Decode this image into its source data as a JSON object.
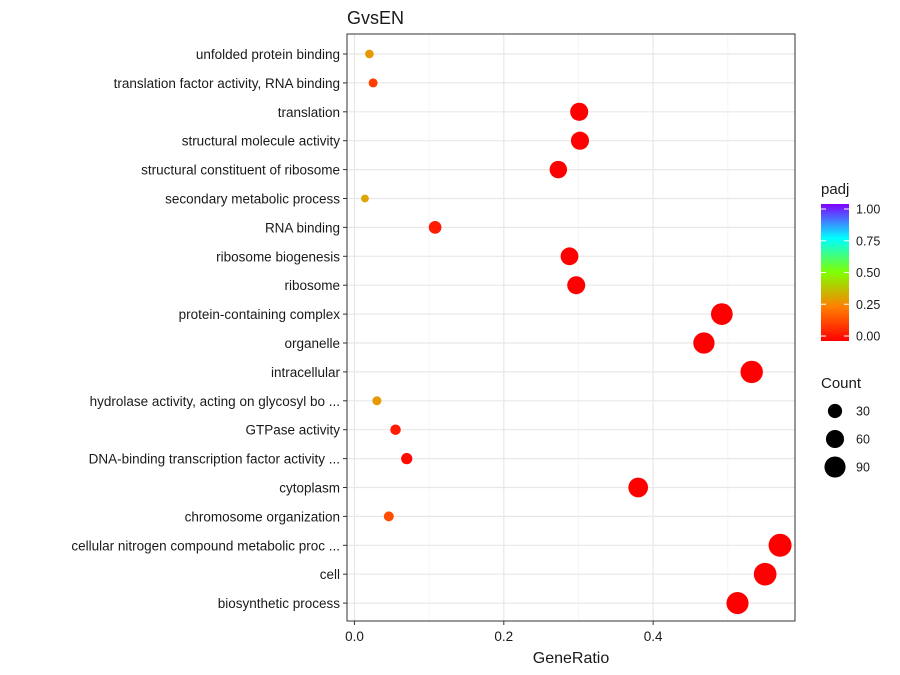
{
  "chart_data": {
    "type": "scatter",
    "title": "GvsEN",
    "xlabel": "GeneRatio",
    "ylabel": "",
    "xlim": [
      -0.01,
      0.59
    ],
    "x_ticks": [
      "0.0",
      "0.2",
      "0.4"
    ],
    "x_tick_values": [
      0.0,
      0.2,
      0.4
    ],
    "grid": true,
    "categories": [
      "unfolded protein binding",
      "translation factor activity, RNA binding",
      "translation",
      "structural molecule activity",
      "structural constituent of ribosome",
      "secondary metabolic process",
      "RNA binding",
      "ribosome biogenesis",
      "ribosome",
      "protein-containing complex",
      "organelle",
      "intracellular",
      "hydrolase activity, acting on glycosyl bo ...",
      "GTPase activity",
      "DNA-binding transcription factor activity ...",
      "cytoplasm",
      "chromosome organization",
      "cellular nitrogen compound metabolic proc ...",
      "cell",
      "biosynthetic process"
    ],
    "points": [
      {
        "term": "unfolded protein binding",
        "x": 0.02,
        "count": 5,
        "padj": 0.3
      },
      {
        "term": "translation factor activity, RNA binding",
        "x": 0.025,
        "count": 6,
        "padj": 0.12
      },
      {
        "term": "translation",
        "x": 0.301,
        "count": 60,
        "padj": 0.0
      },
      {
        "term": "structural molecule activity",
        "x": 0.302,
        "count": 60,
        "padj": 0.0
      },
      {
        "term": "structural constituent of ribosome",
        "x": 0.273,
        "count": 54,
        "padj": 0.0
      },
      {
        "term": "secondary metabolic process",
        "x": 0.014,
        "count": 3,
        "padj": 0.32
      },
      {
        "term": "RNA binding",
        "x": 0.108,
        "count": 21,
        "padj": 0.05
      },
      {
        "term": "ribosome biogenesis",
        "x": 0.288,
        "count": 57,
        "padj": 0.0
      },
      {
        "term": "ribosome",
        "x": 0.297,
        "count": 59,
        "padj": 0.0
      },
      {
        "term": "protein-containing complex",
        "x": 0.492,
        "count": 97,
        "padj": 0.0
      },
      {
        "term": "organelle",
        "x": 0.468,
        "count": 92,
        "padj": 0.0
      },
      {
        "term": "intracellular",
        "x": 0.532,
        "count": 105,
        "padj": 0.0
      },
      {
        "term": "hydrolase activity, acting on glycosyl bo ...",
        "x": 0.03,
        "count": 6,
        "padj": 0.3
      },
      {
        "term": "GTPase activity",
        "x": 0.055,
        "count": 11,
        "padj": 0.05
      },
      {
        "term": "DNA-binding transcription factor activity ...",
        "x": 0.07,
        "count": 14,
        "padj": 0.02
      },
      {
        "term": "cytoplasm",
        "x": 0.38,
        "count": 75,
        "padj": 0.0
      },
      {
        "term": "chromosome organization",
        "x": 0.046,
        "count": 9,
        "padj": 0.15
      },
      {
        "term": "cellular nitrogen compound metabolic proc ...",
        "x": 0.57,
        "count": 112,
        "padj": 0.0
      },
      {
        "term": "cell",
        "x": 0.55,
        "count": 108,
        "padj": 0.0
      },
      {
        "term": "biosynthetic process",
        "x": 0.513,
        "count": 101,
        "padj": 0.0
      }
    ],
    "color_legend": {
      "title": "padj",
      "range": [
        0.0,
        1.0
      ],
      "ticks": [
        "1.00",
        "0.75",
        "0.50",
        "0.25",
        "0.00"
      ],
      "tick_values": [
        1.0,
        0.75,
        0.5,
        0.25,
        0.0
      ],
      "colors": [
        "#ff0000",
        "#ff8000",
        "#80ff00",
        "#00ffff",
        "#8000ff"
      ]
    },
    "size_legend": {
      "title": "Count",
      "labels": [
        "30",
        "60",
        "90"
      ],
      "values": [
        30,
        60,
        90
      ]
    },
    "legend_position": "right"
  }
}
